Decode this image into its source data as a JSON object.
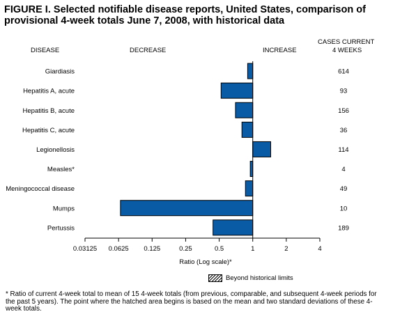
{
  "title": "FIGURE I. Selected notifiable disease reports, United States, comparison of provisional 4-week totals June 7, 2008, with historical data",
  "headers": {
    "disease": "DISEASE",
    "decrease": "DECREASE",
    "increase": "INCREASE",
    "cases_line1": "CASES CURRENT",
    "cases_line2": "4 WEEKS"
  },
  "legend": {
    "label": "Beyond historical limits"
  },
  "footnote": "* Ratio of current 4-week total to mean of 15 4-week totals (from previous, comparable, and subsequent 4-week periods for the past 5 years). The point where the hatched area begins is based on the mean and two standard deviations of these 4-week totals.",
  "colors": {
    "bar": "#0a5ba6",
    "axis": "#000000"
  },
  "chart_data": {
    "type": "bar",
    "orientation": "horizontal",
    "xscale": "log2",
    "xlabel": "Ratio (Log scale)*",
    "xlim": [
      0.03125,
      4
    ],
    "baseline": 1,
    "xticks": [
      0.03125,
      0.0625,
      0.125,
      0.25,
      0.5,
      1,
      2,
      4
    ],
    "xtick_labels": [
      "0.03125",
      "0.0625",
      "0.125",
      "0.25",
      "0.5",
      "1",
      "2",
      "4"
    ],
    "categories": [
      "Giardiasis",
      "Hepatitis A, acute",
      "Hepatitis B, acute",
      "Hepatitis C, acute",
      "Legionellosis",
      "Measles*",
      "Meningococcal disease",
      "Mumps",
      "Pertussis"
    ],
    "values": [
      0.9,
      0.52,
      0.7,
      0.8,
      1.45,
      0.95,
      0.86,
      0.065,
      0.44
    ],
    "cases": [
      "614",
      "93",
      "156",
      "36",
      "114",
      "4",
      "49",
      "10",
      "189"
    ]
  }
}
